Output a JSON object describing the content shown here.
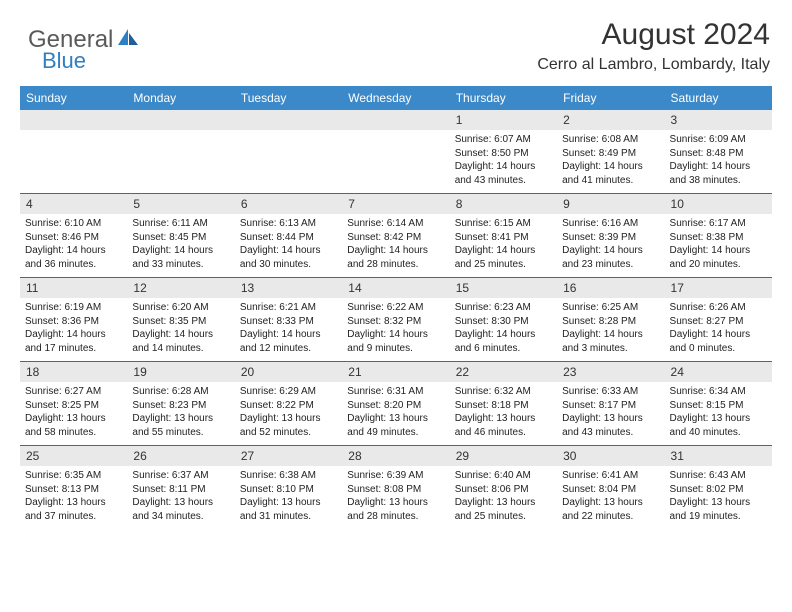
{
  "brand": {
    "part1": "General",
    "part2": "Blue"
  },
  "header": {
    "month": "August 2024",
    "location": "Cerro al Lambro, Lombardy, Italy"
  },
  "colors": {
    "header_bg": "#3b89c9",
    "header_text": "#ffffff",
    "daynum_bg": "#e9e9e9",
    "week_border": "#2f6fa8",
    "brand_gray": "#5a5a5a",
    "brand_blue": "#2f7fc3"
  },
  "dayNames": [
    "Sunday",
    "Monday",
    "Tuesday",
    "Wednesday",
    "Thursday",
    "Friday",
    "Saturday"
  ],
  "weeks": [
    {
      "nums": [
        "",
        "",
        "",
        "",
        "1",
        "2",
        "3"
      ],
      "details": [
        "",
        "",
        "",
        "",
        "Sunrise: 6:07 AM\nSunset: 8:50 PM\nDaylight: 14 hours and 43 minutes.",
        "Sunrise: 6:08 AM\nSunset: 8:49 PM\nDaylight: 14 hours and 41 minutes.",
        "Sunrise: 6:09 AM\nSunset: 8:48 PM\nDaylight: 14 hours and 38 minutes."
      ]
    },
    {
      "nums": [
        "4",
        "5",
        "6",
        "7",
        "8",
        "9",
        "10"
      ],
      "details": [
        "Sunrise: 6:10 AM\nSunset: 8:46 PM\nDaylight: 14 hours and 36 minutes.",
        "Sunrise: 6:11 AM\nSunset: 8:45 PM\nDaylight: 14 hours and 33 minutes.",
        "Sunrise: 6:13 AM\nSunset: 8:44 PM\nDaylight: 14 hours and 30 minutes.",
        "Sunrise: 6:14 AM\nSunset: 8:42 PM\nDaylight: 14 hours and 28 minutes.",
        "Sunrise: 6:15 AM\nSunset: 8:41 PM\nDaylight: 14 hours and 25 minutes.",
        "Sunrise: 6:16 AM\nSunset: 8:39 PM\nDaylight: 14 hours and 23 minutes.",
        "Sunrise: 6:17 AM\nSunset: 8:38 PM\nDaylight: 14 hours and 20 minutes."
      ]
    },
    {
      "nums": [
        "11",
        "12",
        "13",
        "14",
        "15",
        "16",
        "17"
      ],
      "details": [
        "Sunrise: 6:19 AM\nSunset: 8:36 PM\nDaylight: 14 hours and 17 minutes.",
        "Sunrise: 6:20 AM\nSunset: 8:35 PM\nDaylight: 14 hours and 14 minutes.",
        "Sunrise: 6:21 AM\nSunset: 8:33 PM\nDaylight: 14 hours and 12 minutes.",
        "Sunrise: 6:22 AM\nSunset: 8:32 PM\nDaylight: 14 hours and 9 minutes.",
        "Sunrise: 6:23 AM\nSunset: 8:30 PM\nDaylight: 14 hours and 6 minutes.",
        "Sunrise: 6:25 AM\nSunset: 8:28 PM\nDaylight: 14 hours and 3 minutes.",
        "Sunrise: 6:26 AM\nSunset: 8:27 PM\nDaylight: 14 hours and 0 minutes."
      ]
    },
    {
      "nums": [
        "18",
        "19",
        "20",
        "21",
        "22",
        "23",
        "24"
      ],
      "details": [
        "Sunrise: 6:27 AM\nSunset: 8:25 PM\nDaylight: 13 hours and 58 minutes.",
        "Sunrise: 6:28 AM\nSunset: 8:23 PM\nDaylight: 13 hours and 55 minutes.",
        "Sunrise: 6:29 AM\nSunset: 8:22 PM\nDaylight: 13 hours and 52 minutes.",
        "Sunrise: 6:31 AM\nSunset: 8:20 PM\nDaylight: 13 hours and 49 minutes.",
        "Sunrise: 6:32 AM\nSunset: 8:18 PM\nDaylight: 13 hours and 46 minutes.",
        "Sunrise: 6:33 AM\nSunset: 8:17 PM\nDaylight: 13 hours and 43 minutes.",
        "Sunrise: 6:34 AM\nSunset: 8:15 PM\nDaylight: 13 hours and 40 minutes."
      ]
    },
    {
      "nums": [
        "25",
        "26",
        "27",
        "28",
        "29",
        "30",
        "31"
      ],
      "details": [
        "Sunrise: 6:35 AM\nSunset: 8:13 PM\nDaylight: 13 hours and 37 minutes.",
        "Sunrise: 6:37 AM\nSunset: 8:11 PM\nDaylight: 13 hours and 34 minutes.",
        "Sunrise: 6:38 AM\nSunset: 8:10 PM\nDaylight: 13 hours and 31 minutes.",
        "Sunrise: 6:39 AM\nSunset: 8:08 PM\nDaylight: 13 hours and 28 minutes.",
        "Sunrise: 6:40 AM\nSunset: 8:06 PM\nDaylight: 13 hours and 25 minutes.",
        "Sunrise: 6:41 AM\nSunset: 8:04 PM\nDaylight: 13 hours and 22 minutes.",
        "Sunrise: 6:43 AM\nSunset: 8:02 PM\nDaylight: 13 hours and 19 minutes."
      ]
    }
  ]
}
